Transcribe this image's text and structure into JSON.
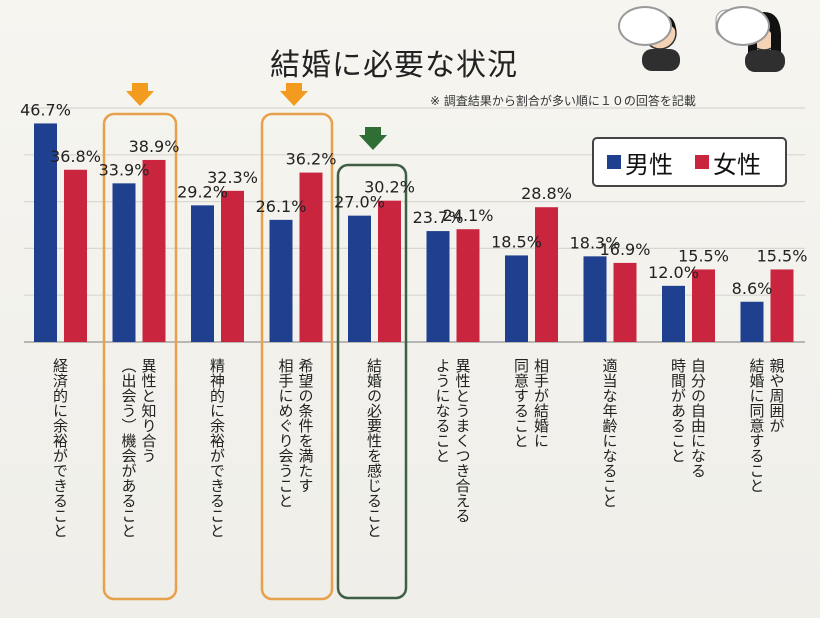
{
  "header": {
    "title": "結婚に必要な状況",
    "note": "※ 調査結果から割合が多い順に１０の回答を記載"
  },
  "legend": {
    "male": "男性",
    "female": "女性"
  },
  "colors": {
    "male": "#1f3f8f",
    "female": "#c9253e",
    "arrow_orange": "#f39b1f",
    "arrow_green": "#2f6e35",
    "highlight_orange": "#e8a14b",
    "highlight_green": "#3f5f45"
  },
  "icons": {
    "left_person": "man-thinking-icon",
    "right_person": "woman-thinking-icon"
  },
  "chart_data": {
    "type": "bar",
    "title": "結婚に必要な状況",
    "categories": [
      "経済的に余裕ができること",
      "異性と知り合う（出会う）機会があること",
      "精神的に余裕ができること",
      "希望の条件を満たす相手にめぐり会うこと",
      "結婚の必要性を感じること",
      "異性とうまくつき合えるようになること",
      "相手が結婚に同意すること",
      "適当な年齢になること",
      "自分の自由になる時間があること",
      "親や周囲が結婚に同意すること"
    ],
    "category_lines": [
      [
        "経済的に余裕ができること"
      ],
      [
        "異性と知り合う",
        "（出会う）機会があること"
      ],
      [
        "精神的に余裕ができること"
      ],
      [
        "希望の条件を満たす",
        "相手にめぐり会うこと"
      ],
      [
        "結婚の必要性を感じること"
      ],
      [
        "異性とうまくつき合える",
        "ようになること"
      ],
      [
        "相手が結婚に",
        "同意すること"
      ],
      [
        "適当な年齢になること"
      ],
      [
        "自分の自由になる",
        "時間があること"
      ],
      [
        "親や周囲が",
        "結婚に同意すること"
      ]
    ],
    "series": [
      {
        "name": "男性",
        "values": [
          46.7,
          33.9,
          29.2,
          26.1,
          27.0,
          23.7,
          18.5,
          18.3,
          12.0,
          8.6
        ],
        "labels": [
          "46.7%",
          "33.9%",
          "29.2%",
          "26.1%",
          "27.0%",
          "23.7%",
          "18.5%",
          "18.3%",
          "12.0%",
          "8.6%"
        ]
      },
      {
        "name": "女性",
        "values": [
          36.8,
          38.9,
          32.3,
          36.2,
          30.2,
          24.1,
          28.8,
          16.9,
          15.5,
          15.5
        ],
        "labels": [
          "36.8%",
          "38.9%",
          "32.3%",
          "36.2%",
          "30.2%",
          "24.1%",
          "28.8%",
          "16.9%",
          "15.5%",
          "15.5%"
        ]
      }
    ],
    "ylim": [
      0,
      50
    ],
    "grid": true,
    "legend_position": "top-right",
    "highlights": [
      {
        "category_index": 1,
        "color": "orange"
      },
      {
        "category_index": 3,
        "color": "orange"
      },
      {
        "category_index": 4,
        "color": "green"
      }
    ]
  }
}
